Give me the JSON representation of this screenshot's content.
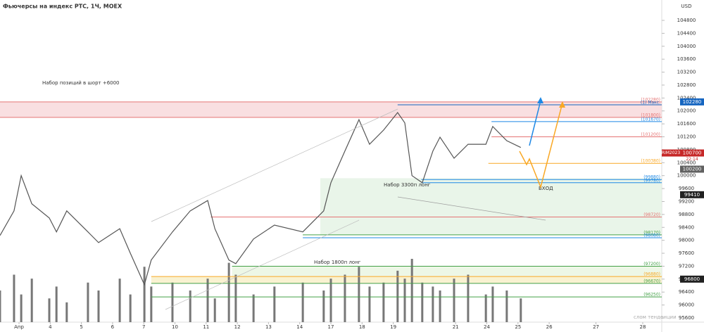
{
  "chart_data": {
    "type": "line",
    "title": "Фьючерсы на индекс РТС, 1Ч, MOEX",
    "currency": "USD",
    "symbol": "RIM2023",
    "countdown": "22:14",
    "annotations": [
      "Набор позиций в шорт +6000",
      "Набор 3300п лонг",
      "Набор 1800п лонг",
      "ВХОД",
      "слом тенденции"
    ],
    "xlim": [
      -0.61,
      20.61
    ],
    "xticks": [
      {
        "value": 0,
        "label": "Апр"
      },
      {
        "value": 1,
        "label": "4"
      },
      {
        "value": 2,
        "label": "5"
      },
      {
        "value": 3,
        "label": "6"
      },
      {
        "value": 4,
        "label": "7"
      },
      {
        "value": 5,
        "label": "10"
      },
      {
        "value": 6,
        "label": "11"
      },
      {
        "value": 7,
        "label": "12"
      },
      {
        "value": 8,
        "label": "13"
      },
      {
        "value": 9,
        "label": "14"
      },
      {
        "value": 10,
        "label": "17"
      },
      {
        "value": 11,
        "label": "18"
      },
      {
        "value": 12,
        "label": "19"
      },
      {
        "value": 14,
        "label": "21"
      },
      {
        "value": 15,
        "label": "24"
      },
      {
        "value": 16,
        "label": "25"
      },
      {
        "value": 17,
        "label": "26"
      },
      {
        "value": 18.5,
        "label": "27"
      },
      {
        "value": 20,
        "label": "28"
      }
    ],
    "ylim": [
      95470,
      105430
    ],
    "yticks": [
      95600,
      96000,
      96400,
      96800,
      97200,
      97600,
      98000,
      98400,
      98800,
      99200,
      99600,
      100000,
      100400,
      100800,
      101200,
      101600,
      102000,
      102400,
      102800,
      103200,
      103600,
      104000,
      104400,
      104800
    ],
    "price": {
      "color": "#555555",
      "x": [
        -0.61,
        -0.16,
        0.07,
        0.41,
        0.97,
        1.2,
        1.53,
        2.21,
        2.55,
        3.23,
        3.57,
        4.02,
        4.24,
        4.92,
        5.49,
        6.05,
        6.28,
        6.73,
        6.95,
        7.52,
        8.19,
        9.1,
        9.77,
        10.0,
        10.45,
        10.9,
        11.24,
        11.69,
        12.14,
        12.37,
        12.6,
        12.93,
        13.27,
        13.5,
        13.95,
        14.4,
        14.97,
        15.19,
        15.64,
        16.09
      ],
      "values": [
        98150,
        98910,
        100000,
        99130,
        98690,
        98260,
        98910,
        98260,
        97930,
        98360,
        97600,
        96630,
        97390,
        98260,
        98910,
        99230,
        98360,
        97390,
        97280,
        98040,
        98470,
        98260,
        98910,
        99780,
        100760,
        101730,
        100970,
        101410,
        101950,
        101630,
        100000,
        99780,
        100760,
        101190,
        100540,
        100970,
        100970,
        101520,
        101080,
        100870
      ],
      "volume": [
        40,
        60,
        35,
        55,
        30,
        45,
        25,
        50,
        40,
        55,
        35,
        70,
        45,
        50,
        40,
        55,
        30,
        75,
        60,
        35,
        45,
        50,
        40,
        55,
        60,
        70,
        45,
        50,
        65,
        55,
        80,
        50,
        45,
        40,
        55,
        60,
        35,
        45,
        40,
        30
      ],
      "volume_color": "#777777"
    },
    "zones": [
      {
        "from": 101800,
        "to": 102280,
        "start": -0.61,
        "color": "#f8d7d9"
      },
      {
        "from": 98170,
        "to": 99920,
        "start": 9.66,
        "color": "#e3f3e3"
      },
      {
        "from": 96880,
        "to": 97200,
        "start": 6.83,
        "color": "#e8f5e0"
      },
      {
        "from": 96670,
        "to": 96880,
        "start": 4.24,
        "color": "#f7efc6"
      }
    ],
    "levels": [
      {
        "value": 102280,
        "label": "(102280)",
        "color": "#e57373",
        "start": -0.61
      },
      {
        "value": 102190,
        "label": "(1) Макс.",
        "color": "#1565c0",
        "start": 12.14
      },
      {
        "value": 101800,
        "label": "(101800)",
        "color": "#e57373",
        "start": -0.61
      },
      {
        "value": 101670,
        "label": "(101670)",
        "color": "#1e88e5",
        "start": 15.15
      },
      {
        "value": 101200,
        "label": "(101200)",
        "color": "#e57373",
        "start": 15.15
      },
      {
        "value": 100380,
        "label": "(100380)",
        "color": "#f9a825",
        "start": 15.05
      },
      {
        "value": 99880,
        "label": "(99880)",
        "color": "#1e88e5",
        "start": 12.9
      },
      {
        "value": 99780,
        "label": "(99780)",
        "color": "#1e88e5",
        "start": 12.9
      },
      {
        "value": 98720,
        "label": "(98720)",
        "color": "#e57373",
        "start": 6.15
      },
      {
        "value": 98170,
        "label": "(98170)",
        "color": "#43a047",
        "start": 9.1
      },
      {
        "value": 98080,
        "label": "(98080)",
        "color": "#1e88e5",
        "start": 9.1
      },
      {
        "value": 97200,
        "label": "(97200)",
        "color": "#43a047",
        "start": 6.83
      },
      {
        "value": 96880,
        "label": "(96880)",
        "color": "#f9a825",
        "start": 4.24
      },
      {
        "value": 96670,
        "label": "(96670)",
        "color": "#43a047",
        "start": 4.24
      },
      {
        "value": 96250,
        "label": "(96250)",
        "color": "#43a047",
        "start": 4.24
      }
    ],
    "badges": [
      {
        "value": 102280,
        "color": "#1565c0"
      },
      {
        "value": 100700,
        "color": "#c62828"
      },
      {
        "value": 100200,
        "color": "#616161"
      },
      {
        "value": 99410,
        "color": "#212121"
      },
      {
        "value": 96800,
        "color": "#212121"
      }
    ]
  }
}
